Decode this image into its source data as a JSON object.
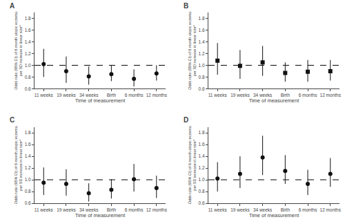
{
  "chart_data": [
    {
      "type": "scatter",
      "title": "A",
      "categories": [
        "11 weeks",
        "19 weeks",
        "34 weeks",
        "Birth",
        "6 months",
        "12 months"
      ],
      "values": [
        1.02,
        0.9,
        0.81,
        0.85,
        0.77,
        0.86
      ],
      "lower": [
        0.8,
        0.7,
        0.67,
        0.73,
        0.64,
        0.74
      ],
      "upper": [
        1.28,
        1.15,
        0.98,
        1.0,
        0.93,
        1.0
      ],
      "xlabel": "Time of measurement",
      "ylabel": "Odds ratio (95% CI) of 6 month atopic eczema\nper SD increase in linear size*",
      "ylim": [
        0.6,
        1.9
      ],
      "yticks": [
        0.6,
        0.8,
        {
          "value": 1.0,
          "label": "1.0"
        },
        1.2,
        1.4,
        1.6,
        1.8
      ],
      "reference_line": 1.0,
      "marker": "circle",
      "color": "#111111",
      "grid": false
    },
    {
      "type": "scatter",
      "title": "B",
      "categories": [
        "11 weeks",
        "19 weeks",
        "34 weeks",
        "Birth",
        "6 months",
        "12 months"
      ],
      "values": [
        1.08,
        0.99,
        1.05,
        0.87,
        0.89,
        0.9
      ],
      "lower": [
        0.84,
        0.77,
        0.82,
        0.72,
        0.72,
        0.74
      ],
      "upper": [
        1.38,
        1.26,
        1.33,
        1.05,
        1.09,
        1.09
      ],
      "xlabel": "Time of measurement",
      "ylabel": "Odds ratio (95% CI) of 6 month atopic eczema\nper SD increase in linear size*",
      "ylim": [
        0.6,
        1.9
      ],
      "yticks": [
        0.6,
        0.8,
        {
          "value": 1.0,
          "label": "1.0"
        },
        1.2,
        1.4,
        1.6,
        1.8
      ],
      "reference_line": 1.0,
      "marker": "square",
      "color": "#111111",
      "grid": false
    },
    {
      "type": "scatter",
      "title": "C",
      "categories": [
        "11 weeks",
        "19 weeks",
        "34 weeks",
        "Birth",
        "6 months",
        "12 months"
      ],
      "values": [
        0.95,
        0.93,
        0.77,
        0.83,
        1.01,
        0.86
      ],
      "lower": [
        0.74,
        0.73,
        0.63,
        0.68,
        0.8,
        0.69
      ],
      "upper": [
        1.21,
        1.18,
        0.94,
        1.01,
        1.27,
        1.07
      ],
      "xlabel": "Time of measurement",
      "ylabel": "Odds ratio (95% CI) of 6 month atopic eczema\nper SD increase in linear size*",
      "ylim": [
        0.6,
        1.9
      ],
      "yticks": [
        0.6,
        0.8,
        {
          "value": 1.0,
          "label": "1.0"
        },
        1.2,
        1.4,
        1.6,
        1.8
      ],
      "reference_line": 1.0,
      "marker": "circle",
      "color": "#111111",
      "grid": false
    },
    {
      "type": "scatter",
      "title": "D",
      "categories": [
        "11 weeks",
        "19 weeks",
        "34 weeks",
        "Birth",
        "6 months",
        "12 months"
      ],
      "values": [
        1.02,
        1.1,
        1.38,
        1.15,
        0.93,
        1.1
      ],
      "lower": [
        0.8,
        0.86,
        1.08,
        0.93,
        0.74,
        0.88
      ],
      "upper": [
        1.3,
        1.4,
        1.75,
        1.42,
        1.17,
        1.37
      ],
      "xlabel": "Time of measurement",
      "ylabel": "Odds ratio (95% CI) of 6 month atopic eczema\nper SD increase in linear size*",
      "ylim": [
        0.6,
        1.9
      ],
      "yticks": [
        0.6,
        0.8,
        {
          "value": 1.0,
          "label": "1.0"
        },
        1.2,
        1.4,
        1.6,
        1.8
      ],
      "reference_line": 1.0,
      "marker": "circle",
      "color": "#111111",
      "grid": false
    }
  ]
}
